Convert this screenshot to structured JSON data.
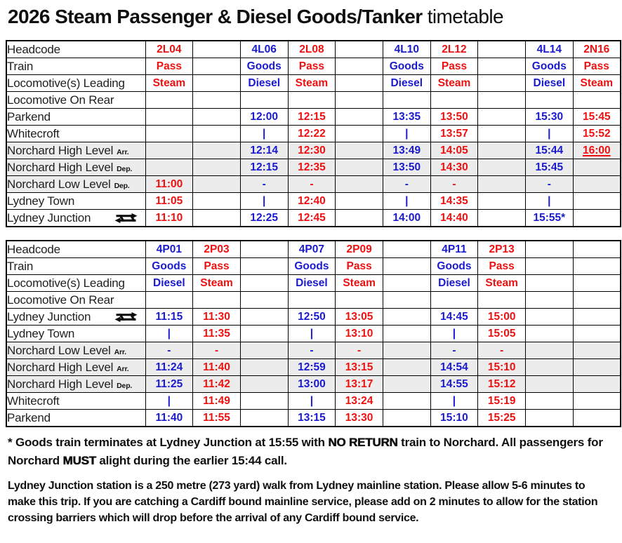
{
  "title": {
    "main": "2026 Steam Passenger & Diesel Goods/Tanker",
    "suffix": " timetable"
  },
  "colors": {
    "blue": "#1A1ACE",
    "red": "#EE1111",
    "shaded_row": "#ECECEC",
    "grid": "#000000",
    "label_text": "#1F1F1F"
  },
  "tables": [
    {
      "name": "outbound-timetable",
      "column_colors": [
        "red",
        "none",
        "blue",
        "red",
        "none",
        "blue",
        "red",
        "none",
        "blue",
        "red"
      ],
      "rows": [
        {
          "label": "Headcode",
          "cells": [
            "2L04",
            "",
            "4L06",
            "2L08",
            "",
            "4L10",
            "2L12",
            "",
            "4L14",
            "2N16"
          ]
        },
        {
          "label": "Train",
          "cells": [
            "Pass",
            "",
            "Goods",
            "Pass",
            "",
            "Goods",
            "Pass",
            "",
            "Goods",
            "Pass"
          ]
        },
        {
          "label": "Locomotive(s) Leading",
          "cells": [
            "Steam",
            "",
            "Diesel",
            "Steam",
            "",
            "Diesel",
            "Steam",
            "",
            "Diesel",
            "Steam"
          ]
        },
        {
          "label": "Locomotive On Rear",
          "cells": [
            "",
            "",
            "",
            "",
            "",
            "",
            "",
            "",
            "",
            ""
          ]
        },
        {
          "label": "Parkend",
          "cells": [
            "",
            "",
            "12:00",
            "12:15",
            "",
            "13:35",
            "13:50",
            "",
            "15:30",
            "15:45"
          ]
        },
        {
          "label": "Whitecroft",
          "cells": [
            "",
            "",
            "|",
            "12:22",
            "",
            "|",
            "13:57",
            "",
            "|",
            "15:52"
          ]
        },
        {
          "label": "Norchard High Level",
          "suffix": "Arr.",
          "shaded": true,
          "cells": [
            "",
            "",
            "12:14",
            "12:30",
            "",
            "13:49",
            "14:05",
            "",
            "15:44",
            {
              "text": "16:00",
              "underline": true
            }
          ]
        },
        {
          "label": "Norchard High Level",
          "suffix": "Dep.",
          "shaded": true,
          "cells": [
            "",
            "",
            "12:15",
            "12:35",
            "",
            "13:50",
            "14:30",
            "",
            "15:45",
            ""
          ]
        },
        {
          "label": "Norchard Low Level",
          "suffix": "Dep.",
          "shaded": true,
          "cells": [
            "11:00",
            "",
            "-",
            "-",
            "",
            "-",
            "-",
            "",
            "-",
            ""
          ]
        },
        {
          "label": "Lydney Town",
          "cells": [
            "11:05",
            "",
            "|",
            "12:40",
            "",
            "|",
            "14:35",
            "",
            "|",
            ""
          ]
        },
        {
          "label": "Lydney Junction",
          "icon": "national-rail",
          "cells": [
            "11:10",
            "",
            "12:25",
            "12:45",
            "",
            "14:00",
            "14:40",
            "",
            "15:55*",
            ""
          ]
        }
      ]
    },
    {
      "name": "return-timetable",
      "column_colors": [
        "blue",
        "red",
        "none",
        "blue",
        "red",
        "none",
        "blue",
        "red",
        "none",
        "none"
      ],
      "rows": [
        {
          "label": "Headcode",
          "cells": [
            "4P01",
            "2P03",
            "",
            "4P07",
            "2P09",
            "",
            "4P11",
            "2P13",
            "",
            ""
          ]
        },
        {
          "label": "Train",
          "cells": [
            "Goods",
            "Pass",
            "",
            "Goods",
            "Pass",
            "",
            "Goods",
            "Pass",
            "",
            ""
          ]
        },
        {
          "label": "Locomotive(s) Leading",
          "cells": [
            "Diesel",
            "Steam",
            "",
            "Diesel",
            "Steam",
            "",
            "Diesel",
            "Steam",
            "",
            ""
          ]
        },
        {
          "label": "Locomotive On Rear",
          "cells": [
            "",
            "",
            "",
            "",
            "",
            "",
            "",
            "",
            "",
            ""
          ]
        },
        {
          "label": "Lydney Junction",
          "icon": "national-rail",
          "cells": [
            "11:15",
            "11:30",
            "",
            "12:50",
            "13:05",
            "",
            "14:45",
            "15:00",
            "",
            ""
          ]
        },
        {
          "label": "Lydney Town",
          "cells": [
            "|",
            "11:35",
            "",
            "|",
            "13:10",
            "",
            "|",
            "15:05",
            "",
            ""
          ]
        },
        {
          "label": "Norchard Low Level",
          "suffix": "Arr.",
          "shaded": true,
          "cells": [
            "-",
            "-",
            "",
            "-",
            "-",
            "",
            "-",
            "-",
            "",
            ""
          ]
        },
        {
          "label": "Norchard High Level",
          "suffix": "Arr.",
          "shaded": true,
          "cells": [
            "11:24",
            "11:40",
            "",
            "12:59",
            "13:15",
            "",
            "14:54",
            "15:10",
            "",
            ""
          ]
        },
        {
          "label": "Norchard High Level",
          "suffix": "Dep.",
          "shaded": true,
          "cells": [
            "11:25",
            "11:42",
            "",
            "13:00",
            "13:17",
            "",
            "14:55",
            "15:12",
            "",
            ""
          ]
        },
        {
          "label": "Whitecroft",
          "cells": [
            "|",
            "11:49",
            "",
            "|",
            "13:24",
            "",
            "|",
            "15:19",
            "",
            ""
          ]
        },
        {
          "label": "Parkend",
          "cells": [
            "11:40",
            "11:55",
            "",
            "13:15",
            "13:30",
            "",
            "15:10",
            "15:25",
            "",
            ""
          ]
        }
      ]
    }
  ],
  "footnote": {
    "segments": [
      {
        "text": "* Goods train terminates at Lydney Junction at 15:55 with "
      },
      {
        "text": "NO RETURN",
        "extra_bold": true
      },
      {
        "text": " train to Norchard. All passengers for Norchard "
      },
      {
        "text": "MUST",
        "extra_bold": true
      },
      {
        "text": " alight during the earlier 15:44 call."
      }
    ]
  },
  "walk_note": "Lydney Junction station is a 250 metre (273 yard) walk from Lydney mainline station. Please allow 5-6 minutes to make this trip. If you are catching a Cardiff bound mainline service, please add on 2 minutes to allow for the station crossing barriers which will drop before the arrival of any Cardiff bound service."
}
